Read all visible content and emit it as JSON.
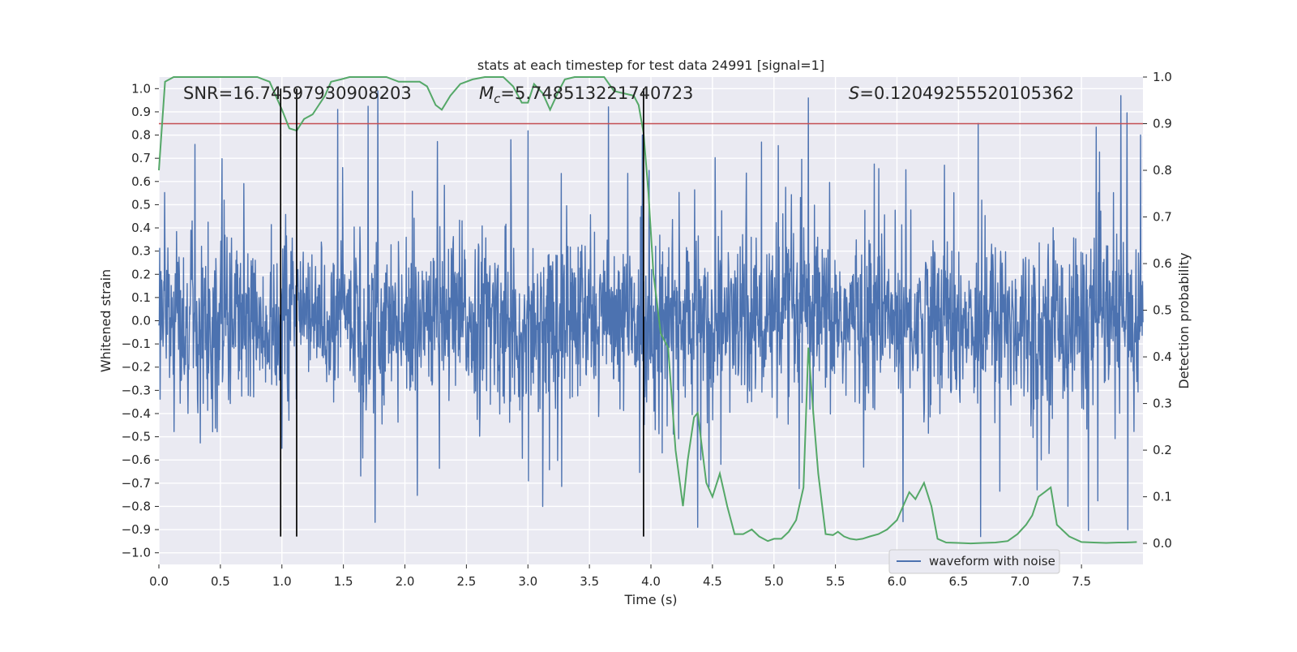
{
  "chart_data": {
    "type": "line",
    "title": "stats at each timestep for test data 24991 [signal=1]",
    "xlabel": "Time (s)",
    "ylabel_left": "Whitened strain",
    "ylabel_right": "Detection probability",
    "xlim": [
      0,
      8
    ],
    "ylim_left": [
      -1.05,
      1.05
    ],
    "ylim_right": [
      -0.045,
      1.0
    ],
    "x_ticks": [
      "0.0",
      "0.5",
      "1.0",
      "1.5",
      "2.0",
      "2.5",
      "3.0",
      "3.5",
      "4.0",
      "4.5",
      "5.0",
      "5.5",
      "6.0",
      "6.5",
      "7.0",
      "7.5"
    ],
    "y_left_ticks": [
      "1.0",
      "0.9",
      "0.8",
      "0.7",
      "0.6",
      "0.5",
      "0.4",
      "0.3",
      "0.2",
      "0.1",
      "0.0",
      "−0.1",
      "−0.2",
      "−0.3",
      "−0.4",
      "−0.5",
      "−0.6",
      "−0.7",
      "−0.8",
      "−0.9",
      "−1.0"
    ],
    "y_right_ticks": [
      "1.0",
      "0.9",
      "0.8",
      "0.7",
      "0.6",
      "0.5",
      "0.4",
      "0.3",
      "0.2",
      "0.1",
      "0.0"
    ],
    "grid": true,
    "legend": {
      "position": "bottom-right",
      "entries": [
        "waveform with noise"
      ]
    },
    "annotations": {
      "snr": "SNR=16.74597930908203",
      "mc_symbol": "M",
      "mc_sub": "c",
      "mc_value": "=5.748513221740723",
      "s_symbol": "S",
      "s_value": "=0.12049255520105362"
    },
    "threshold": 0.9,
    "vertical_lines_x": [
      0.99,
      1.12,
      3.94
    ],
    "colors": {
      "waveform": "#4c72b0",
      "probability": "#55a868",
      "threshold": "#c44e52",
      "markers": "#000000",
      "axes_bg": "#eaeaf2",
      "grid": "#ffffff"
    },
    "series": [
      {
        "name": "waveform with noise",
        "type": "noise-waveform",
        "approx_envelope": [
          -0.45,
          0.45
        ],
        "peak_max": 0.97,
        "peak_min": -0.93
      },
      {
        "axis": "right",
        "x": [
          0.0,
          0.05,
          0.12,
          0.2,
          0.3,
          0.4,
          0.5,
          0.6,
          0.7,
          0.8,
          0.85,
          0.9,
          0.95,
          1.0,
          1.06,
          1.12,
          1.18,
          1.25,
          1.3,
          1.35,
          1.4,
          1.48,
          1.55,
          1.65,
          1.75,
          1.85,
          1.95,
          2.05,
          2.12,
          2.18,
          2.25,
          2.3,
          2.37,
          2.45,
          2.55,
          2.65,
          2.72,
          2.8,
          2.88,
          2.95,
          3.0,
          3.05,
          3.12,
          3.18,
          3.25,
          3.3,
          3.38,
          3.45,
          3.55,
          3.62,
          3.7,
          3.78,
          3.86,
          3.9,
          3.94,
          3.98,
          4.02,
          4.08,
          4.14,
          4.2,
          4.26,
          4.3,
          4.35,
          4.38,
          4.45,
          4.5,
          4.56,
          4.62,
          4.68,
          4.75,
          4.82,
          4.88,
          4.95,
          5.0,
          5.06,
          5.12,
          5.18,
          5.24,
          5.28,
          5.32,
          5.36,
          5.42,
          5.48,
          5.52,
          5.57,
          5.62,
          5.67,
          5.72,
          5.78,
          5.85,
          5.92,
          6.0,
          6.05,
          6.1,
          6.15,
          6.22,
          6.28,
          6.33,
          6.4,
          6.5,
          6.6,
          6.7,
          6.8,
          6.9,
          6.98,
          7.05,
          7.1,
          7.15,
          7.2,
          7.25,
          7.3,
          7.4,
          7.5,
          7.6,
          7.7,
          7.8,
          7.85,
          7.95
        ],
        "y": [
          0.8,
          0.99,
          1.0,
          1.0,
          1.0,
          1.0,
          1.0,
          1.0,
          1.0,
          1.0,
          0.995,
          0.99,
          0.96,
          0.93,
          0.89,
          0.885,
          0.91,
          0.92,
          0.94,
          0.96,
          0.99,
          0.995,
          1.0,
          1.0,
          1.0,
          1.0,
          0.99,
          0.99,
          0.99,
          0.98,
          0.94,
          0.93,
          0.96,
          0.985,
          0.995,
          1.0,
          1.0,
          1.0,
          0.98,
          0.945,
          0.945,
          0.985,
          0.965,
          0.93,
          0.97,
          0.995,
          1.0,
          1.0,
          1.0,
          1.0,
          0.97,
          0.965,
          0.96,
          0.94,
          0.88,
          0.75,
          0.58,
          0.45,
          0.42,
          0.2,
          0.08,
          0.18,
          0.27,
          0.28,
          0.13,
          0.1,
          0.15,
          0.08,
          0.02,
          0.02,
          0.03,
          0.015,
          0.005,
          0.01,
          0.01,
          0.025,
          0.05,
          0.12,
          0.42,
          0.28,
          0.15,
          0.02,
          0.018,
          0.025,
          0.015,
          0.01,
          0.008,
          0.01,
          0.015,
          0.02,
          0.03,
          0.05,
          0.08,
          0.11,
          0.095,
          0.13,
          0.08,
          0.01,
          0.002,
          0.001,
          0.0,
          0.001,
          0.002,
          0.005,
          0.02,
          0.04,
          0.06,
          0.1,
          0.11,
          0.12,
          0.04,
          0.015,
          0.003,
          0.002,
          0.001,
          0.002,
          0.002,
          0.003
        ]
      }
    ]
  }
}
